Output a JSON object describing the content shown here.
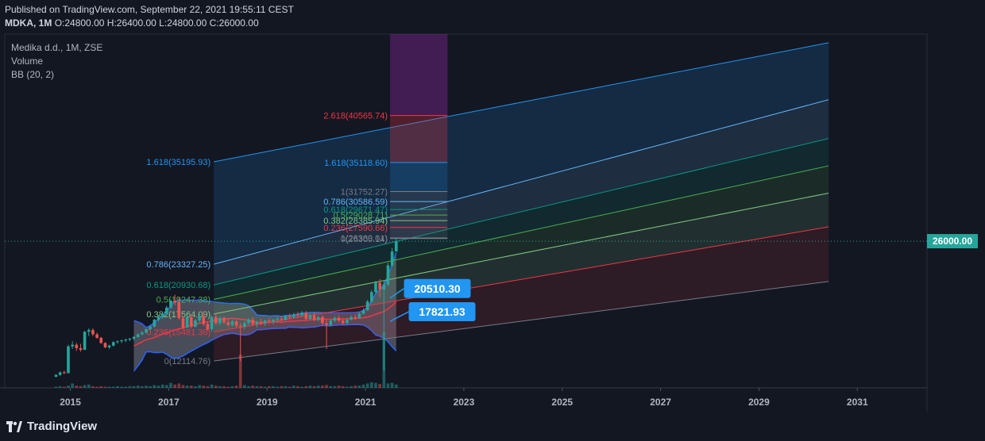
{
  "header": {
    "published": "Published on TradingView.com, September 22, 2021 19:55:11 CEST",
    "symbol": "MDKA, 1M",
    "o_label": "O:",
    "o_value": "24800.00",
    "h_label": "H:",
    "h_value": "26400.00",
    "l_label": "L:",
    "l_value": "24800.00",
    "c_label": "C:",
    "c_value": "26000.00"
  },
  "legend": {
    "title": "Medika d.d., 1M, ZSE",
    "volume": "Volume",
    "bb": "BB (20, 2)"
  },
  "footer": {
    "brand": "TradingView"
  },
  "colors": {
    "background": "#131722",
    "up": "#26a69a",
    "down": "#ef5350",
    "bb_line": "#2962ff",
    "bb_basis": "#f23645",
    "last_price": "#26a69a",
    "callout": "#2196f3"
  },
  "chart_data": {
    "type": "candlestick",
    "xlim": [
      "2013-09",
      "2032-06"
    ],
    "ylim": [
      9000,
      50000
    ],
    "x_ticks": [
      "2015",
      "2017",
      "2019",
      "2021",
      "2023",
      "2025",
      "2027",
      "2029",
      "2031"
    ],
    "last_price": {
      "value": 26000,
      "label": "26000.00"
    },
    "candles": [
      {
        "t": "2014-09",
        "o": 10300,
        "h": 10600,
        "l": 10200,
        "c": 10500
      },
      {
        "t": "2014-10",
        "o": 10500,
        "h": 10900,
        "l": 10400,
        "c": 10800
      },
      {
        "t": "2014-11",
        "o": 10800,
        "h": 11000,
        "l": 10600,
        "c": 10700
      },
      {
        "t": "2014-12",
        "o": 10700,
        "h": 14000,
        "l": 10700,
        "c": 13800
      },
      {
        "t": "2015-01",
        "o": 13800,
        "h": 14400,
        "l": 13500,
        "c": 14000
      },
      {
        "t": "2015-02",
        "o": 14000,
        "h": 14200,
        "l": 13300,
        "c": 13600
      },
      {
        "t": "2015-03",
        "o": 13600,
        "h": 14100,
        "l": 13200,
        "c": 13400
      },
      {
        "t": "2015-04",
        "o": 13400,
        "h": 15600,
        "l": 13400,
        "c": 15500
      },
      {
        "t": "2015-05",
        "o": 15500,
        "h": 15900,
        "l": 15000,
        "c": 15700
      },
      {
        "t": "2015-06",
        "o": 15700,
        "h": 15900,
        "l": 15000,
        "c": 15200
      },
      {
        "t": "2015-07",
        "o": 15200,
        "h": 15400,
        "l": 14700,
        "c": 14800
      },
      {
        "t": "2015-08",
        "o": 14800,
        "h": 14900,
        "l": 14100,
        "c": 14200
      },
      {
        "t": "2015-09",
        "o": 14200,
        "h": 14300,
        "l": 13600,
        "c": 13700
      },
      {
        "t": "2015-10",
        "o": 13700,
        "h": 14000,
        "l": 13500,
        "c": 13900
      },
      {
        "t": "2015-11",
        "o": 13900,
        "h": 14400,
        "l": 13800,
        "c": 14300
      },
      {
        "t": "2015-12",
        "o": 14300,
        "h": 14500,
        "l": 14100,
        "c": 14400
      },
      {
        "t": "2016-01",
        "o": 14400,
        "h": 14600,
        "l": 14200,
        "c": 14500
      },
      {
        "t": "2016-02",
        "o": 14500,
        "h": 14700,
        "l": 14300,
        "c": 14600
      },
      {
        "t": "2016-03",
        "o": 14600,
        "h": 14800,
        "l": 14400,
        "c": 14700
      },
      {
        "t": "2016-04",
        "o": 14700,
        "h": 15000,
        "l": 14500,
        "c": 14900
      },
      {
        "t": "2016-05",
        "o": 14900,
        "h": 15300,
        "l": 14800,
        "c": 15200
      },
      {
        "t": "2016-06",
        "o": 15200,
        "h": 15600,
        "l": 15100,
        "c": 15400
      },
      {
        "t": "2016-07",
        "o": 15400,
        "h": 15900,
        "l": 15300,
        "c": 15800
      },
      {
        "t": "2016-08",
        "o": 15800,
        "h": 16300,
        "l": 15700,
        "c": 16100
      },
      {
        "t": "2016-09",
        "o": 16100,
        "h": 17000,
        "l": 16000,
        "c": 16900
      },
      {
        "t": "2016-10",
        "o": 16900,
        "h": 17400,
        "l": 16700,
        "c": 17200
      },
      {
        "t": "2016-11",
        "o": 17200,
        "h": 17800,
        "l": 17000,
        "c": 17600
      },
      {
        "t": "2016-12",
        "o": 17600,
        "h": 18500,
        "l": 17400,
        "c": 18300
      },
      {
        "t": "2017-01",
        "o": 18300,
        "h": 19300,
        "l": 18200,
        "c": 19100
      },
      {
        "t": "2017-02",
        "o": 19100,
        "h": 19800,
        "l": 18600,
        "c": 18900
      },
      {
        "t": "2017-03",
        "o": 18900,
        "h": 19500,
        "l": 16900,
        "c": 17100
      },
      {
        "t": "2017-04",
        "o": 17100,
        "h": 17300,
        "l": 15800,
        "c": 16000
      },
      {
        "t": "2017-05",
        "o": 16000,
        "h": 17400,
        "l": 15900,
        "c": 17200
      },
      {
        "t": "2017-06",
        "o": 17200,
        "h": 17500,
        "l": 15900,
        "c": 16100
      },
      {
        "t": "2017-07",
        "o": 16100,
        "h": 17000,
        "l": 16000,
        "c": 16800
      },
      {
        "t": "2017-08",
        "o": 16800,
        "h": 17600,
        "l": 16500,
        "c": 17300
      },
      {
        "t": "2017-09",
        "o": 17300,
        "h": 17900,
        "l": 16200,
        "c": 16400
      },
      {
        "t": "2017-10",
        "o": 16400,
        "h": 16700,
        "l": 15600,
        "c": 15800
      },
      {
        "t": "2017-11",
        "o": 15800,
        "h": 17400,
        "l": 15500,
        "c": 17200
      },
      {
        "t": "2017-12",
        "o": 17200,
        "h": 17600,
        "l": 16300,
        "c": 16500
      },
      {
        "t": "2018-01",
        "o": 16500,
        "h": 17300,
        "l": 16300,
        "c": 17100
      },
      {
        "t": "2018-02",
        "o": 17100,
        "h": 17300,
        "l": 16400,
        "c": 16600
      },
      {
        "t": "2018-03",
        "o": 16600,
        "h": 17000,
        "l": 16100,
        "c": 16300
      },
      {
        "t": "2018-04",
        "o": 16300,
        "h": 16900,
        "l": 16100,
        "c": 16700
      },
      {
        "t": "2018-05",
        "o": 16700,
        "h": 16900,
        "l": 16000,
        "c": 16200
      },
      {
        "t": "2018-06",
        "o": 16200,
        "h": 16500,
        "l": 12100,
        "c": 16100
      },
      {
        "t": "2018-07",
        "o": 16100,
        "h": 16700,
        "l": 15800,
        "c": 16500
      },
      {
        "t": "2018-08",
        "o": 16500,
        "h": 17100,
        "l": 16300,
        "c": 16900
      },
      {
        "t": "2018-09",
        "o": 16900,
        "h": 17200,
        "l": 16200,
        "c": 16400
      },
      {
        "t": "2018-10",
        "o": 16400,
        "h": 16800,
        "l": 16000,
        "c": 16600
      },
      {
        "t": "2018-11",
        "o": 16600,
        "h": 17000,
        "l": 16300,
        "c": 16500
      },
      {
        "t": "2018-12",
        "o": 16500,
        "h": 16900,
        "l": 16200,
        "c": 16800
      },
      {
        "t": "2019-01",
        "o": 16800,
        "h": 17100,
        "l": 16500,
        "c": 16700
      },
      {
        "t": "2019-02",
        "o": 16700,
        "h": 17000,
        "l": 16400,
        "c": 16900
      },
      {
        "t": "2019-03",
        "o": 16900,
        "h": 17200,
        "l": 16600,
        "c": 17000
      },
      {
        "t": "2019-04",
        "o": 17000,
        "h": 17300,
        "l": 16700,
        "c": 16900
      },
      {
        "t": "2019-05",
        "o": 16900,
        "h": 17400,
        "l": 16800,
        "c": 17300
      },
      {
        "t": "2019-06",
        "o": 17300,
        "h": 17600,
        "l": 17000,
        "c": 17200
      },
      {
        "t": "2019-07",
        "o": 17200,
        "h": 17700,
        "l": 17100,
        "c": 17500
      },
      {
        "t": "2019-08",
        "o": 17500,
        "h": 17800,
        "l": 17200,
        "c": 17400
      },
      {
        "t": "2019-09",
        "o": 17400,
        "h": 17900,
        "l": 17300,
        "c": 17700
      },
      {
        "t": "2019-10",
        "o": 17700,
        "h": 17900,
        "l": 16800,
        "c": 17000
      },
      {
        "t": "2019-11",
        "o": 17000,
        "h": 17600,
        "l": 16900,
        "c": 17400
      },
      {
        "t": "2019-12",
        "o": 17400,
        "h": 17700,
        "l": 16700,
        "c": 16900
      },
      {
        "t": "2020-01",
        "o": 16900,
        "h": 17400,
        "l": 16700,
        "c": 17200
      },
      {
        "t": "2020-02",
        "o": 17200,
        "h": 17400,
        "l": 16200,
        "c": 16500
      },
      {
        "t": "2020-03",
        "o": 16500,
        "h": 16900,
        "l": 13500,
        "c": 16300
      },
      {
        "t": "2020-04",
        "o": 16300,
        "h": 17000,
        "l": 16100,
        "c": 16800
      },
      {
        "t": "2020-05",
        "o": 16800,
        "h": 17300,
        "l": 16600,
        "c": 17100
      },
      {
        "t": "2020-06",
        "o": 17100,
        "h": 17400,
        "l": 16600,
        "c": 16800
      },
      {
        "t": "2020-07",
        "o": 16800,
        "h": 17000,
        "l": 16300,
        "c": 16500
      },
      {
        "t": "2020-08",
        "o": 16500,
        "h": 17100,
        "l": 16400,
        "c": 16900
      },
      {
        "t": "2020-09",
        "o": 16900,
        "h": 17400,
        "l": 16800,
        "c": 17200
      },
      {
        "t": "2020-10",
        "o": 17200,
        "h": 17500,
        "l": 16900,
        "c": 17100
      },
      {
        "t": "2020-11",
        "o": 17100,
        "h": 17800,
        "l": 17000,
        "c": 17600
      },
      {
        "t": "2020-12",
        "o": 17600,
        "h": 18200,
        "l": 17500,
        "c": 18000
      },
      {
        "t": "2021-01",
        "o": 18000,
        "h": 19200,
        "l": 17900,
        "c": 19000
      },
      {
        "t": "2021-02",
        "o": 19000,
        "h": 20300,
        "l": 18800,
        "c": 20100
      },
      {
        "t": "2021-03",
        "o": 20100,
        "h": 21400,
        "l": 19900,
        "c": 21200
      },
      {
        "t": "2021-04",
        "o": 21200,
        "h": 21600,
        "l": 19500,
        "c": 20400
      },
      {
        "t": "2021-05",
        "o": 20400,
        "h": 21500,
        "l": 11000,
        "c": 21000
      },
      {
        "t": "2021-06",
        "o": 21000,
        "h": 23500,
        "l": 20800,
        "c": 23200
      },
      {
        "t": "2021-07",
        "o": 23200,
        "h": 25200,
        "l": 23000,
        "c": 24800
      },
      {
        "t": "2021-08",
        "o": 24800,
        "h": 26400,
        "l": 24800,
        "c": 26000
      }
    ],
    "volume": [
      2,
      3,
      2,
      4,
      8,
      4,
      3,
      5,
      6,
      3,
      2,
      3,
      2,
      2,
      2,
      3,
      2,
      2,
      3,
      3,
      4,
      3,
      4,
      3,
      5,
      4,
      6,
      5,
      9,
      6,
      8,
      5,
      4,
      4,
      3,
      5,
      4,
      3,
      6,
      4,
      3,
      3,
      2,
      3,
      4,
      60,
      5,
      3,
      4,
      3,
      3,
      2,
      3,
      3,
      2,
      3,
      3,
      2,
      4,
      3,
      2,
      3,
      4,
      3,
      4,
      4,
      5,
      3,
      3,
      4,
      3,
      2,
      3,
      4,
      4,
      6,
      8,
      10,
      9,
      7,
      100,
      8,
      9,
      6
    ],
    "fib_levels": [
      {
        "label": "2.618(40565.74)",
        "value": 40565.74,
        "color": "#f23645"
      },
      {
        "label": "1.618(35118.60)",
        "value": 35118.6,
        "color": "#2196f3"
      },
      {
        "label": "1(31752.27)",
        "value": 31752.27,
        "color": "#787b86"
      },
      {
        "label": "0.786(30586.59)",
        "value": 30586.59,
        "color": "#64b5f6"
      },
      {
        "label": "0.618(29671.47)",
        "value": 29671.47,
        "color": "#089981"
      },
      {
        "label": "0.5(29028.71)",
        "value": 29028.71,
        "color": "#4caf50"
      },
      {
        "label": "0.382(28385.94)",
        "value": 28385.94,
        "color": "#81c784"
      },
      {
        "label": "0.236(27590.66)",
        "value": 27590.66,
        "color": "#f23645"
      },
      {
        "label": "0(26305.14)",
        "value": 26305.14,
        "color": "#787b86"
      },
      {
        "label": "1(26380.01)",
        "value": 26380.01,
        "color": "#787b86"
      }
    ],
    "channel_levels": [
      {
        "label": "1.618(35195.93)",
        "value": 35195.93,
        "color": "#2196f3"
      },
      {
        "label": "0.786(23327.25)",
        "value": 23327.25,
        "color": "#64b5f6"
      },
      {
        "label": "0.618(20930.68)",
        "value": 20930.68,
        "color": "#089981"
      },
      {
        "label": "0.5(19247.38)",
        "value": 19247.38,
        "color": "#4caf50"
      },
      {
        "label": "0.382(17564.09)",
        "value": 17564.09,
        "color": "#81c784"
      },
      {
        "label": "0.236(15481.36)",
        "value": 15481.36,
        "color": "#f23645"
      },
      {
        "label": "0(12114.76)",
        "value": 12114.76,
        "color": "#787b86"
      }
    ],
    "callouts": [
      {
        "label": "20510.30",
        "value": 20510.3
      },
      {
        "label": "17821.93",
        "value": 17821.93
      }
    ]
  }
}
